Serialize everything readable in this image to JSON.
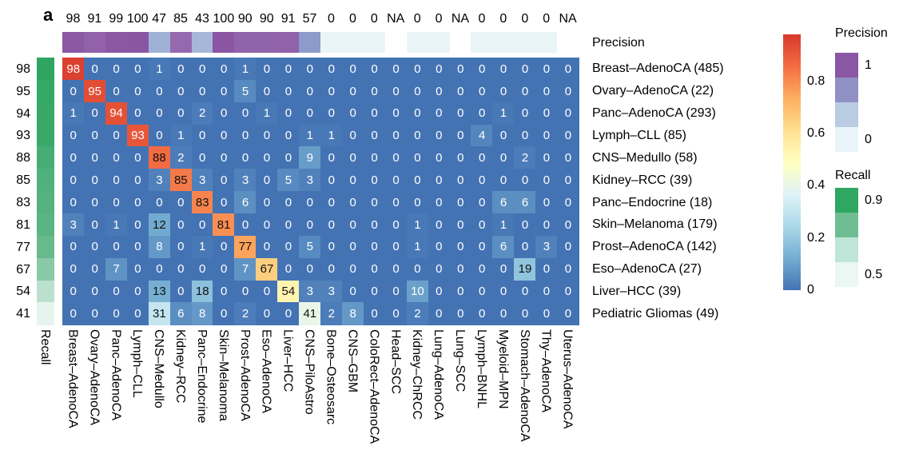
{
  "figure_label": "a",
  "precision_label": "Precision",
  "recall_axis_label": "Recall",
  "chart_data": {
    "type": "heatmap",
    "title": "",
    "columns": [
      "Breast–AdenoCA",
      "Ovary–AdenoCA",
      "Panc–AdenoCA",
      "Lymph–CLL",
      "CNS–Medullo",
      "Kidney–RCC",
      "Panc–Endocrine",
      "Skin–Melanoma",
      "Prost–AdenoCA",
      "Eso–AdenoCA",
      "Liver–HCC",
      "CNS–PiloAstro",
      "Bone–Osteosarc",
      "CNS–GBM",
      "ColoRect–AdenoCA",
      "Head–SCC",
      "Kidney–ChRCC",
      "Lung–AdenoCA",
      "Lung–SCC",
      "Lymph–BNHL",
      "Myeloid–MPN",
      "Stomach–AdenoCA",
      "Thy–AdenoCA",
      "Uterus–AdenoCA"
    ],
    "rows": [
      "Breast–AdenoCA (485)",
      "Ovary–AdenoCA (22)",
      "Panc–AdenoCA (293)",
      "Lymph–CLL (85)",
      "CNS–Medullo (58)",
      "Kidney–RCC (39)",
      "Panc–Endocrine (18)",
      "Skin–Melanoma (179)",
      "Prost–AdenoCA (142)",
      "Eso–AdenoCA (27)",
      "Liver–HCC (39)",
      "Pediatric Gliomas (49)"
    ],
    "recall_percent": [
      98,
      95,
      94,
      93,
      88,
      85,
      83,
      81,
      77,
      67,
      54,
      41
    ],
    "precision_percent": [
      "98",
      "91",
      "99",
      "100",
      "47",
      "85",
      "43",
      "100",
      "90",
      "90",
      "91",
      "57",
      "0",
      "0",
      "0",
      "NA",
      "0",
      "0",
      "NA",
      "0",
      "0",
      "0",
      "0",
      "NA"
    ],
    "matrix": [
      [
        98,
        0,
        0,
        0,
        1,
        0,
        0,
        0,
        1,
        0,
        0,
        0,
        0,
        0,
        0,
        0,
        0,
        0,
        0,
        0,
        0,
        0,
        0,
        0
      ],
      [
        0,
        95,
        0,
        0,
        0,
        0,
        0,
        0,
        5,
        0,
        0,
        0,
        0,
        0,
        0,
        0,
        0,
        0,
        0,
        0,
        0,
        0,
        0,
        0
      ],
      [
        1,
        0,
        94,
        0,
        0,
        0,
        2,
        0,
        0,
        1,
        0,
        0,
        0,
        0,
        0,
        0,
        0,
        0,
        0,
        0,
        1,
        0,
        0,
        0
      ],
      [
        0,
        0,
        0,
        93,
        0,
        1,
        0,
        0,
        0,
        0,
        0,
        1,
        1,
        0,
        0,
        0,
        0,
        0,
        0,
        4,
        0,
        0,
        0,
        0
      ],
      [
        0,
        0,
        0,
        0,
        88,
        2,
        0,
        0,
        0,
        0,
        0,
        9,
        0,
        0,
        0,
        0,
        0,
        0,
        0,
        0,
        0,
        2,
        0,
        0
      ],
      [
        0,
        0,
        0,
        0,
        3,
        85,
        3,
        0,
        3,
        0,
        5,
        3,
        0,
        0,
        0,
        0,
        0,
        0,
        0,
        0,
        0,
        0,
        0,
        0
      ],
      [
        0,
        0,
        0,
        0,
        0,
        0,
        83,
        0,
        6,
        0,
        0,
        0,
        0,
        0,
        0,
        0,
        0,
        0,
        0,
        0,
        6,
        6,
        0,
        0
      ],
      [
        3,
        0,
        1,
        0,
        12,
        0,
        0,
        81,
        0,
        0,
        0,
        0,
        0,
        0,
        0,
        0,
        1,
        0,
        0,
        0,
        1,
        0,
        0,
        0
      ],
      [
        0,
        0,
        0,
        0,
        8,
        0,
        1,
        0,
        77,
        0,
        0,
        5,
        0,
        0,
        0,
        0,
        1,
        0,
        0,
        0,
        6,
        0,
        3,
        0
      ],
      [
        0,
        0,
        7,
        0,
        0,
        0,
        0,
        0,
        7,
        67,
        0,
        0,
        0,
        0,
        0,
        0,
        0,
        0,
        0,
        0,
        0,
        19,
        0,
        0
      ],
      [
        0,
        0,
        0,
        0,
        13,
        0,
        18,
        0,
        0,
        0,
        54,
        3,
        3,
        0,
        0,
        0,
        10,
        0,
        0,
        0,
        0,
        0,
        0,
        0
      ],
      [
        0,
        0,
        0,
        0,
        31,
        6,
        8,
        0,
        2,
        0,
        0,
        41,
        2,
        8,
        0,
        0,
        2,
        0,
        0,
        0,
        0,
        0,
        0,
        0
      ]
    ],
    "colorbar": {
      "tick_labels": [
        "0.8",
        "0.6",
        "0.4",
        "0.2",
        "0"
      ],
      "top_value": 0.98,
      "gradient_bottom_to_top": [
        "#4473b4",
        "#74add1",
        "#abd9e9",
        "#e0f3f8",
        "#ffffbf",
        "#fee090",
        "#fdae61",
        "#f46d43",
        "#d7382c"
      ]
    },
    "precision_legend": {
      "title": "Precision",
      "square_colors": [
        "#8a57a4",
        "#8f90c4",
        "#b9cce4",
        "#e9f5fa"
      ],
      "tick_labels": [
        "1",
        "0"
      ]
    },
    "recall_legend": {
      "title": "Recall",
      "square_colors": [
        "#2fa661",
        "#6fbe93",
        "#bfe5d8",
        "#eaf7f2"
      ],
      "tick_labels": [
        "0.9",
        "0.5"
      ]
    },
    "scales": {
      "matrix_stops": [
        [
          0,
          "#4473b4"
        ],
        [
          12.5,
          "#74add1"
        ],
        [
          25,
          "#abd9e9"
        ],
        [
          37.5,
          "#e0f3f8"
        ],
        [
          50,
          "#ffffbf"
        ],
        [
          62.5,
          "#fee090"
        ],
        [
          75,
          "#fdae61"
        ],
        [
          87.5,
          "#f46d43"
        ],
        [
          100,
          "#d7382c"
        ]
      ],
      "precision_stops": [
        [
          0,
          "#eaf5f8"
        ],
        [
          25,
          "#c3d5e9"
        ],
        [
          45,
          "#a3b5d7"
        ],
        [
          57,
          "#8c9bca"
        ],
        [
          70,
          "#8f83c0"
        ],
        [
          85,
          "#9569ae"
        ],
        [
          100,
          "#8a56a3"
        ]
      ],
      "precision_na_color": "#ffffff",
      "recall_stops": [
        [
          40,
          "#e8f6ef"
        ],
        [
          50,
          "#cbe9da"
        ],
        [
          60,
          "#a4d6bd"
        ],
        [
          70,
          "#7fc49e"
        ],
        [
          80,
          "#5eb586"
        ],
        [
          90,
          "#40ac70"
        ],
        [
          100,
          "#2aa35d"
        ]
      ]
    }
  }
}
